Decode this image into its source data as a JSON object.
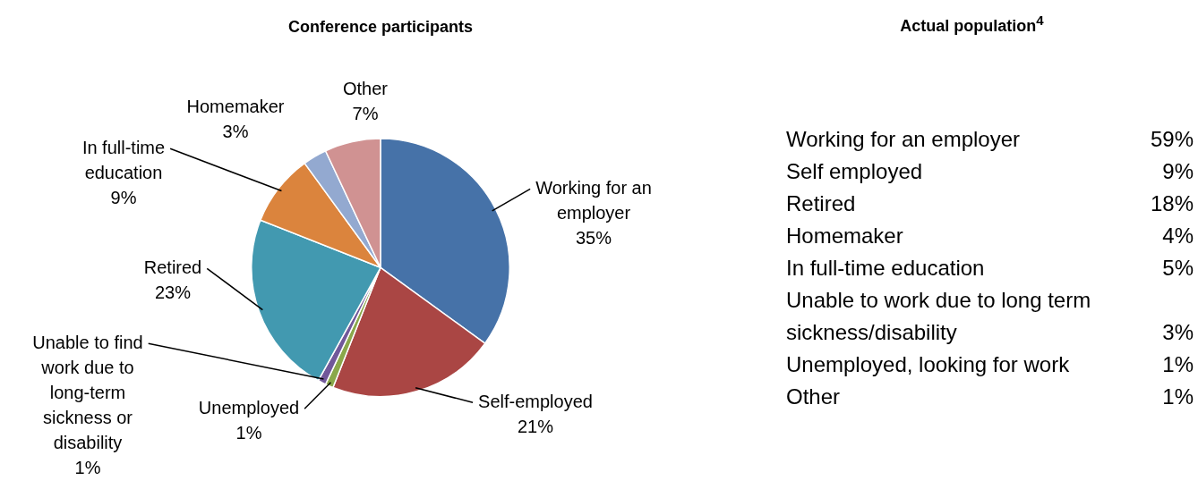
{
  "chart_data": [
    {
      "type": "pie",
      "title": "Conference participants",
      "categories": [
        "Working for an employer",
        "Self-employed",
        "Unemployed",
        "Unable to find work due to long-term sickness or disability",
        "Retired",
        "In full-time education",
        "Homemaker",
        "Other"
      ],
      "values": [
        35,
        21,
        1,
        1,
        23,
        9,
        3,
        7
      ],
      "value_labels": [
        "35%",
        "21%",
        "1%",
        "1%",
        "23%",
        "9%",
        "3%",
        "7%"
      ],
      "colors": [
        "#4672a8",
        "#aa4644",
        "#8aa84a",
        "#71589a",
        "#4299b0",
        "#db843d",
        "#93a9d0",
        "#d09292"
      ]
    },
    {
      "type": "other",
      "title": "Actual population$^{4}$",
      "categories": [
        "Working for an employer",
        "Self employed",
        "Retired",
        "Homemaker",
        "In full-time education",
        "Unable to work due to long term sickness/disability",
        "Unemployed, looking for work",
        "Other"
      ],
      "value_labels": [
        "59%",
        "9%",
        "18%",
        "4%",
        "5%",
        "3%",
        "1%",
        "1%"
      ]
    }
  ]
}
